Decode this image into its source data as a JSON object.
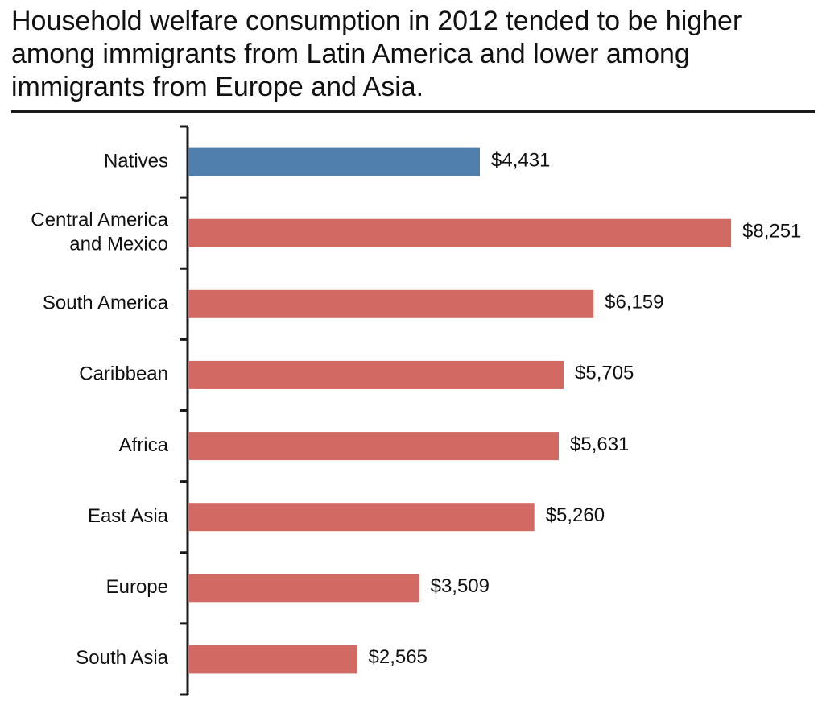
{
  "title": "Household welfare consumption in 2012 tended to be higher among immigrants from Latin America and lower among immigrants from Europe and Asia.",
  "colors": {
    "natives": "#4f7fac",
    "immigrants": "#d06a62",
    "axis": "#1a1a1a"
  },
  "chart_data": {
    "type": "bar",
    "orientation": "horizontal",
    "title": "Household welfare consumption in 2012 tended to be higher among immigrants from Latin America and lower among immigrants from Europe and Asia.",
    "categories": [
      [
        "Natives"
      ],
      [
        "Central America",
        "and Mexico"
      ],
      [
        "South America"
      ],
      [
        "Caribbean"
      ],
      [
        "Africa"
      ],
      [
        "East Asia"
      ],
      [
        "Europe"
      ],
      [
        "South Asia"
      ]
    ],
    "values": [
      4431,
      8251,
      6159,
      5705,
      5631,
      5260,
      3509,
      2565
    ],
    "value_labels": [
      "$4,431",
      "$8,251",
      "$6,159",
      "$5,705",
      "$5,631",
      "$5,260",
      "$3,509",
      "$2,565"
    ],
    "groups": [
      "natives",
      "immigrants",
      "immigrants",
      "immigrants",
      "immigrants",
      "immigrants",
      "immigrants",
      "immigrants"
    ],
    "xlim": [
      0,
      8251
    ],
    "grid": false,
    "legend": "none"
  }
}
